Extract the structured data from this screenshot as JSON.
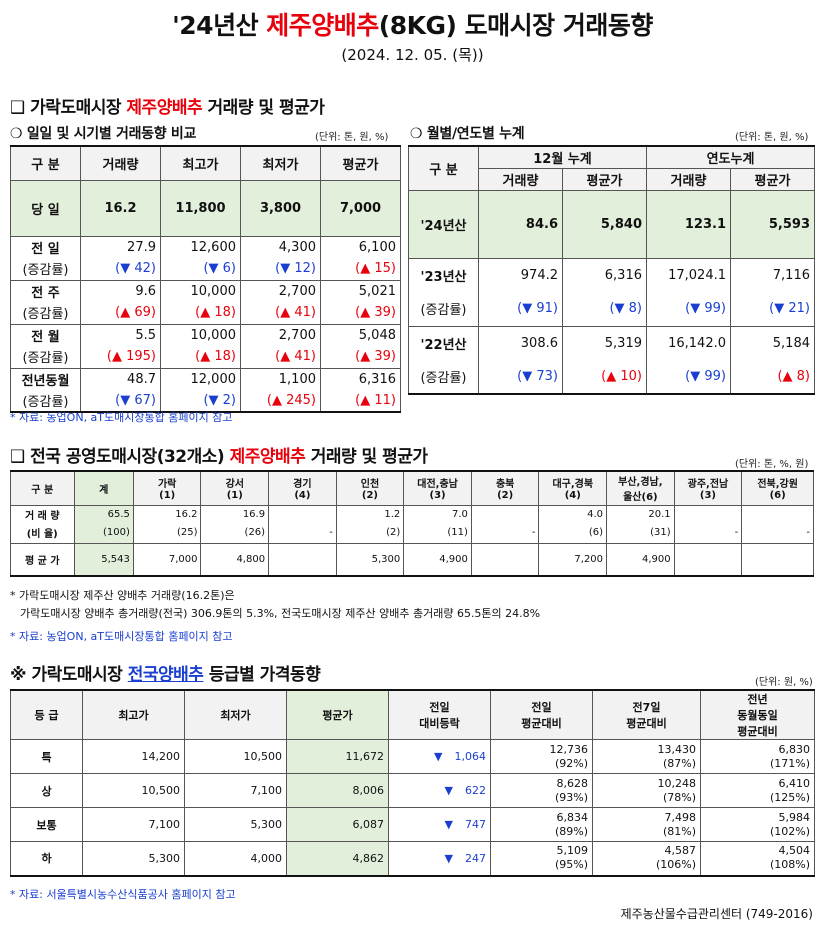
{
  "title": {
    "pre": "'24년산 ",
    "red": "제주양배추",
    "post": "(8KG) 도매시장 거래동향"
  },
  "date": "(2024. 12. 05. (목))",
  "sec1": {
    "heading_pre": "❑ 가락도매시장 ",
    "heading_red": "제주양배추",
    "heading_post": " 거래량 및 평균가",
    "left": {
      "title": "❍ 일일 및 시기별 거래동향 비교",
      "unit": "(단위: 톤, 원, %)",
      "headers": [
        "구  분",
        "거래량",
        "최고가",
        "최저가",
        "평균가"
      ],
      "today": {
        "label": "당  일",
        "v": [
          "16.2",
          "11,800",
          "3,800",
          "7,000"
        ]
      },
      "rows": [
        {
          "label": "전  일",
          "v": [
            "27.9",
            "12,600",
            "4,300",
            "6,100"
          ],
          "chg_label": "(증감률)",
          "chg": [
            {
              "dir": "down",
              "t": "(▼ 42)"
            },
            {
              "dir": "down",
              "t": "(▼ 6)"
            },
            {
              "dir": "down",
              "t": "(▼ 12)"
            },
            {
              "dir": "up",
              "t": "(▲ 15)"
            }
          ]
        },
        {
          "label": "전  주",
          "v": [
            "9.6",
            "10,000",
            "2,700",
            "5,021"
          ],
          "chg_label": "(증감률)",
          "chg": [
            {
              "dir": "up",
              "t": "(▲ 69)"
            },
            {
              "dir": "up",
              "t": "(▲ 18)"
            },
            {
              "dir": "up",
              "t": "(▲ 41)"
            },
            {
              "dir": "up",
              "t": "(▲ 39)"
            }
          ]
        },
        {
          "label": "전  월",
          "v": [
            "5.5",
            "10,000",
            "2,700",
            "5,048"
          ],
          "chg_label": "(증감률)",
          "chg": [
            {
              "dir": "up",
              "t": "(▲ 195)"
            },
            {
              "dir": "up",
              "t": "(▲ 18)"
            },
            {
              "dir": "up",
              "t": "(▲ 41)"
            },
            {
              "dir": "up",
              "t": "(▲ 39)"
            }
          ]
        },
        {
          "label": "전년동월",
          "v": [
            "48.7",
            "12,000",
            "1,100",
            "6,316"
          ],
          "chg_label": "(증감률)",
          "chg": [
            {
              "dir": "down",
              "t": "(▼ 67)"
            },
            {
              "dir": "down",
              "t": "(▼ 2)"
            },
            {
              "dir": "up",
              "t": "(▲ 245)"
            },
            {
              "dir": "up",
              "t": "(▲ 11)"
            }
          ]
        }
      ]
    },
    "right": {
      "title": "❍ 월별/연도별 누계",
      "unit": "(단위: 톤, 원, %)",
      "h_gubun": "구  분",
      "h_month": "12월 누계",
      "h_year": "연도누계",
      "sub": [
        "거래량",
        "평균가",
        "거래량",
        "평균가"
      ],
      "cur": {
        "label": "'24년산",
        "v": [
          "84.6",
          "5,840",
          "123.1",
          "5,593"
        ]
      },
      "rows": [
        {
          "label": "'23년산",
          "v": [
            "974.2",
            "6,316",
            "17,024.1",
            "7,116"
          ],
          "chg_label": "(증감률)",
          "chg": [
            {
              "dir": "down",
              "t": "(▼ 91)"
            },
            {
              "dir": "down",
              "t": "(▼ 8)"
            },
            {
              "dir": "down",
              "t": "(▼ 99)"
            },
            {
              "dir": "down",
              "t": "(▼ 21)"
            }
          ]
        },
        {
          "label": "'22년산",
          "v": [
            "308.6",
            "5,319",
            "16,142.0",
            "5,184"
          ],
          "chg_label": "(증감률)",
          "chg": [
            {
              "dir": "down",
              "t": "(▼ 73)"
            },
            {
              "dir": "up",
              "t": "(▲ 10)"
            },
            {
              "dir": "down",
              "t": "(▼ 99)"
            },
            {
              "dir": "up",
              "t": "(▲ 8)"
            }
          ]
        }
      ]
    },
    "source": "* 자료: 농업ON, aT도매시장통합 홈페이지 참고"
  },
  "sec2": {
    "heading_pre": "❑ 전국 공영도매시장(32개소) ",
    "heading_red": "제주양배추",
    "heading_post": " 거래량 및 평균가",
    "unit": "(단위: 톤, %, 원)",
    "headers": [
      {
        "l1": "구  분",
        "l2": ""
      },
      {
        "l1": "계",
        "l2": ""
      },
      {
        "l1": "가락",
        "l2": "(1)"
      },
      {
        "l1": "강서",
        "l2": "(1)"
      },
      {
        "l1": "경기",
        "l2": "(4)"
      },
      {
        "l1": "인천",
        "l2": "(2)"
      },
      {
        "l1": "대전,충남",
        "l2": "(3)"
      },
      {
        "l1": "충북",
        "l2": "(2)"
      },
      {
        "l1": "대구,경북",
        "l2": "(4)"
      },
      {
        "l1": "부산,경남,",
        "l2": "울산(6)"
      },
      {
        "l1": "광주,전남",
        "l2": "(3)"
      },
      {
        "l1": "전북,강원",
        "l2": "(6)"
      }
    ],
    "vol_label": "거 래 량",
    "ratio_label": "(비 율)",
    "price_label": "평 균 가",
    "vol": [
      "65.5",
      "16.2",
      "16.9",
      "",
      "1.2",
      "7.0",
      "",
      "4.0",
      "20.1",
      "",
      ""
    ],
    "ratio": [
      "(100)",
      "(25)",
      "(26)",
      "-",
      "(2)",
      "(11)",
      "-",
      "(6)",
      "(31)",
      "-",
      "-"
    ],
    "price": [
      "5,543",
      "7,000",
      "4,800",
      "",
      "5,300",
      "4,900",
      "",
      "7,200",
      "4,900",
      "",
      ""
    ],
    "note1": "* 가락도매시장 제주산 양배추 거래량(16.2톤)은",
    "note2": "가락도매시장 양배추 총거래량(전국) 306.9톤의 5.3%, 전국도매시장 제주산 양배추 총거래량 65.5톤의 24.8%",
    "source": "* 자료: 농업ON, aT도매시장통합 홈페이지 참고"
  },
  "sec3": {
    "heading_pre": "※ 가락도매시장 ",
    "heading_blue": "전국양배추",
    "heading_post": " 등급별 가격동향",
    "unit": "(단위: 원, %)",
    "headers": [
      {
        "l1": "등  급",
        "l2": "",
        "l3": ""
      },
      {
        "l1": "최고가",
        "l2": "",
        "l3": ""
      },
      {
        "l1": "최저가",
        "l2": "",
        "l3": ""
      },
      {
        "l1": "평균가",
        "l2": "",
        "l3": ""
      },
      {
        "l1": "전일",
        "l2": "대비등락",
        "l3": ""
      },
      {
        "l1": "전일",
        "l2": "평균대비",
        "l3": ""
      },
      {
        "l1": "전7일",
        "l2": "평균대비",
        "l3": ""
      },
      {
        "l1": "전년",
        "l2": "동월동일",
        "l3": "평균대비"
      }
    ],
    "rows": [
      {
        "grade": "특",
        "max": "14,200",
        "min": "10,500",
        "avg": "11,672",
        "diff": "1,064",
        "prev": "12,736",
        "prev_p": "(92%)",
        "w7": "13,430",
        "w7_p": "(87%)",
        "ly": "6,830",
        "ly_p": "(171%)"
      },
      {
        "grade": "상",
        "max": "10,500",
        "min": "7,100",
        "avg": "8,006",
        "diff": "622",
        "prev": "8,628",
        "prev_p": "(93%)",
        "w7": "10,248",
        "w7_p": "(78%)",
        "ly": "6,410",
        "ly_p": "(125%)"
      },
      {
        "grade": "보통",
        "max": "7,100",
        "min": "5,300",
        "avg": "6,087",
        "diff": "747",
        "prev": "6,834",
        "prev_p": "(89%)",
        "w7": "7,498",
        "w7_p": "(81%)",
        "ly": "5,984",
        "ly_p": "(102%)"
      },
      {
        "grade": "하",
        "max": "5,300",
        "min": "4,000",
        "avg": "4,862",
        "diff": "247",
        "prev": "5,109",
        "prev_p": "(95%)",
        "w7": "4,587",
        "w7_p": "(106%)",
        "ly": "4,504",
        "ly_p": "(108%)"
      }
    ],
    "diff_icon": "▼",
    "source": "* 자료: 서울특별시농수산식품공사 홈페이지 참고"
  },
  "footer": "제주농산물수급관리센터 (749-2016)",
  "colors": {
    "red": "#e8000b",
    "blue": "#1a3fd0",
    "green": "#e2efda",
    "header": "#f2f2f2"
  }
}
